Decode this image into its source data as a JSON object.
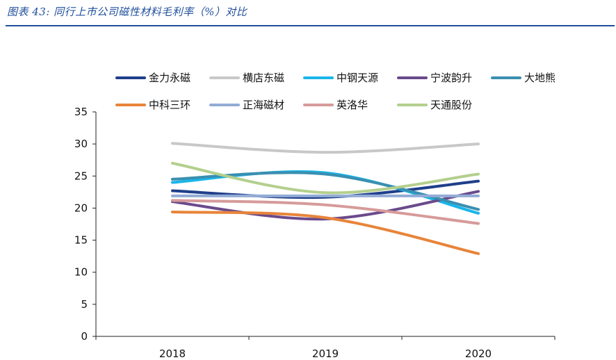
{
  "figure": {
    "title": "图表 43:  同行上市公司磁性材料毛利率（%）对比"
  },
  "chart_data": {
    "type": "line",
    "title": "",
    "xlabel": "",
    "ylabel": "",
    "categories": [
      "2018",
      "2019",
      "2020"
    ],
    "ylim": [
      0,
      35
    ],
    "yticks": [
      0,
      5,
      10,
      15,
      20,
      25,
      30,
      35
    ],
    "grid": false,
    "smooth": true,
    "legend_position": "top",
    "series": [
      {
        "name": "金力永磁",
        "color": "#1f3f8a",
        "values": [
          22.7,
          21.7,
          24.2
        ]
      },
      {
        "name": "横店东磁",
        "color": "#c8c8c8",
        "values": [
          30.1,
          28.7,
          30.0
        ]
      },
      {
        "name": "中钢天源",
        "color": "#19b6ea",
        "values": [
          24.0,
          25.5,
          19.2
        ]
      },
      {
        "name": "宁波韵升",
        "color": "#6a4a8c",
        "values": [
          21.0,
          18.3,
          22.6
        ]
      },
      {
        "name": "大地熊",
        "color": "#3a8fb0",
        "values": [
          24.5,
          25.3,
          19.8
        ]
      },
      {
        "name": "中科三环",
        "color": "#e8843a",
        "values": [
          19.4,
          18.5,
          12.9
        ]
      },
      {
        "name": "正海磁材",
        "color": "#93acd6",
        "values": [
          21.9,
          21.9,
          21.9
        ]
      },
      {
        "name": "英洛华",
        "color": "#d69a9a",
        "values": [
          21.2,
          20.5,
          17.6
        ]
      },
      {
        "name": "天通股份",
        "color": "#b3cf8e",
        "values": [
          27.0,
          22.4,
          25.3
        ]
      }
    ]
  }
}
